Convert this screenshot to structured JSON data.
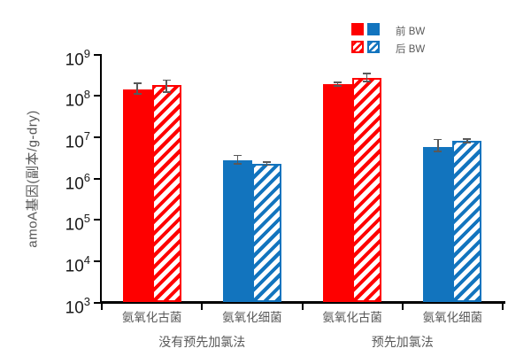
{
  "colors": {
    "red": "#fe0000",
    "blue": "#1274be",
    "error_bar": "#595959",
    "axis": "#000000",
    "label_gray": "#595959"
  },
  "legend": {
    "items": [
      {
        "label": "前 BW",
        "pattern": "solid"
      },
      {
        "label": "后 BW",
        "pattern": "hatch"
      }
    ],
    "swatch_color_keys": [
      "red",
      "blue"
    ]
  },
  "chart_data": {
    "type": "bar",
    "title": "",
    "ylabel": "amoA基因(副本/g-dry)",
    "xlabel": "",
    "yscale": "log",
    "ylim": [
      1000.0,
      1000000000.0
    ],
    "ytick_exponents": [
      9,
      8,
      7,
      6,
      5,
      4,
      3
    ],
    "grid": false,
    "legend_position": "top-right",
    "group_labels": [
      "没有预先加氯法",
      "预先加氯法"
    ],
    "series_names": [
      "前 BW",
      "后 BW"
    ],
    "categories": [
      {
        "label": "氨氧化古菌",
        "group": 0,
        "color_key": "red",
        "bars": [
          {
            "series": "前 BW",
            "pattern": "solid",
            "value": 140000000.0,
            "err_lo": 110000000.0,
            "err_hi": 200000000.0
          },
          {
            "series": "后 BW",
            "pattern": "hatch",
            "value": 180000000.0,
            "err_lo": 125000000.0,
            "err_hi": 240000000.0
          }
        ]
      },
      {
        "label": "氨氧化细菌",
        "group": 0,
        "color_key": "blue",
        "bars": [
          {
            "series": "前 BW",
            "pattern": "solid",
            "value": 2800000.0,
            "err_lo": 2300000.0,
            "err_hi": 3600000.0
          },
          {
            "series": "后 BW",
            "pattern": "hatch",
            "value": 2300000.0,
            "err_lo": 2100000.0,
            "err_hi": 2500000.0
          }
        ]
      },
      {
        "label": "氨氧化古菌",
        "group": 1,
        "color_key": "red",
        "bars": [
          {
            "series": "前 BW",
            "pattern": "solid",
            "value": 190000000.0,
            "err_lo": 175000000.0,
            "err_hi": 210000000.0
          },
          {
            "series": "后 BW",
            "pattern": "hatch",
            "value": 270000000.0,
            "err_lo": 225000000.0,
            "err_hi": 340000000.0
          }
        ]
      },
      {
        "label": "氨氧化细菌",
        "group": 1,
        "color_key": "blue",
        "bars": [
          {
            "series": "前 BW",
            "pattern": "solid",
            "value": 5800000.0,
            "err_lo": 4500000.0,
            "err_hi": 8800000.0
          },
          {
            "series": "后 BW",
            "pattern": "hatch",
            "value": 8200000.0,
            "err_lo": 7500000.0,
            "err_hi": 9000000.0
          }
        ]
      }
    ]
  }
}
